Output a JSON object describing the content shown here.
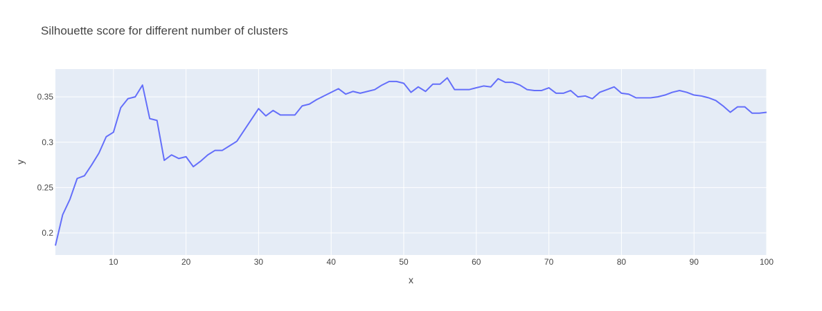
{
  "chart_data": {
    "type": "line",
    "title": "Silhouette score for different number of clusters",
    "xlabel": "x",
    "ylabel": "y",
    "xlim": [
      2,
      100
    ],
    "ylim": [
      0.1756,
      0.3806
    ],
    "x_ticks": [
      10,
      20,
      30,
      40,
      50,
      60,
      70,
      80,
      90,
      100
    ],
    "y_ticks": [
      0.2,
      0.25,
      0.3,
      0.35
    ],
    "y_tick_labels": [
      "0.2",
      "0.25",
      "0.3",
      "0.35"
    ],
    "grid": true,
    "colors": {
      "background": "#E5ECF6",
      "grid": "#ffffff",
      "line": "#636EFA"
    },
    "series": [
      {
        "x": [
          2,
          3,
          4,
          5,
          6,
          7,
          8,
          9,
          10,
          11,
          12,
          13,
          14,
          15,
          16,
          17,
          18,
          19,
          20,
          21,
          22,
          23,
          24,
          25,
          26,
          27,
          28,
          29,
          30,
          31,
          32,
          33,
          34,
          35,
          36,
          37,
          38,
          39,
          40,
          41,
          42,
          43,
          44,
          45,
          46,
          47,
          48,
          49,
          50,
          51,
          52,
          53,
          54,
          55,
          56,
          57,
          58,
          59,
          60,
          61,
          62,
          63,
          64,
          65,
          66,
          67,
          68,
          69,
          70,
          71,
          72,
          73,
          74,
          75,
          76,
          77,
          78,
          79,
          80,
          81,
          82,
          83,
          84,
          85,
          86,
          87,
          88,
          89,
          90,
          91,
          92,
          93,
          94,
          95,
          96,
          97,
          98,
          99,
          100
        ],
        "values": [
          0.186,
          0.22,
          0.237,
          0.26,
          0.263,
          0.275,
          0.288,
          0.306,
          0.311,
          0.338,
          0.348,
          0.35,
          0.363,
          0.326,
          0.324,
          0.28,
          0.286,
          0.282,
          0.284,
          0.273,
          0.279,
          0.286,
          0.291,
          0.291,
          0.296,
          0.301,
          0.313,
          0.325,
          0.337,
          0.329,
          0.335,
          0.33,
          0.33,
          0.33,
          0.34,
          0.342,
          0.347,
          0.351,
          0.355,
          0.359,
          0.353,
          0.356,
          0.354,
          0.356,
          0.358,
          0.363,
          0.367,
          0.367,
          0.365,
          0.355,
          0.361,
          0.356,
          0.364,
          0.364,
          0.371,
          0.358,
          0.358,
          0.358,
          0.36,
          0.362,
          0.361,
          0.37,
          0.366,
          0.366,
          0.363,
          0.358,
          0.357,
          0.357,
          0.36,
          0.354,
          0.354,
          0.357,
          0.35,
          0.351,
          0.348,
          0.355,
          0.358,
          0.361,
          0.354,
          0.353,
          0.349,
          0.349,
          0.349,
          0.35,
          0.352,
          0.355,
          0.357,
          0.355,
          0.352,
          0.351,
          0.349,
          0.346,
          0.34,
          0.333,
          0.339,
          0.339,
          0.332,
          0.332,
          0.333
        ]
      }
    ]
  }
}
